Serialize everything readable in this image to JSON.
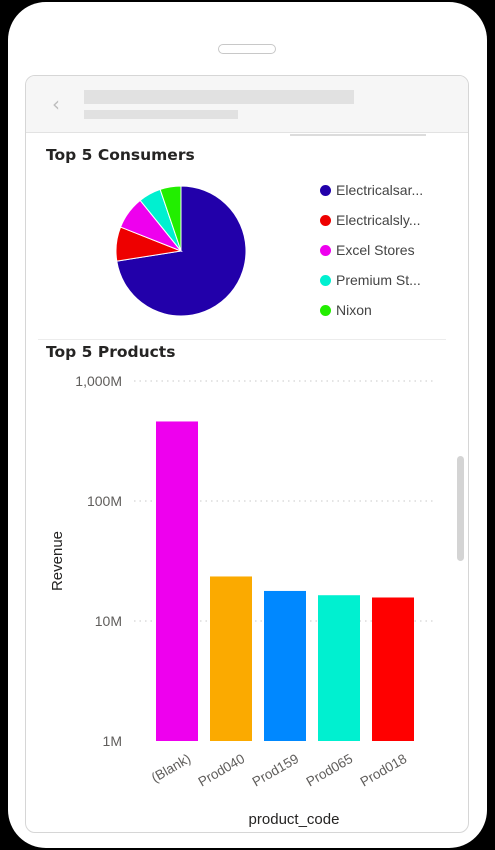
{
  "page": {
    "background": "#000000",
    "frame": "#ffffff"
  },
  "header": {
    "back_icon": "chevron-left-icon"
  },
  "pie_card": {
    "title": "Top 5 Consumers"
  },
  "bar_card": {
    "title": "Top 5 Products"
  },
  "chart_data": [
    {
      "type": "pie",
      "title": "Top 5 Consumers",
      "legend_position": "right",
      "slices": [
        {
          "label": "Electricalsar...",
          "value": 72.5,
          "color": "#2200AA"
        },
        {
          "label": "Electricalsly...",
          "value": 8.5,
          "color": "#EE0000"
        },
        {
          "label": "Excel Stores",
          "value": 8.2,
          "color": "#EE00EE"
        },
        {
          "label": "Premium St...",
          "value": 5.6,
          "color": "#00F0D0"
        },
        {
          "label": "Nixon",
          "value": 5.2,
          "color": "#22EE00"
        }
      ]
    },
    {
      "type": "bar",
      "title": "Top 5 Products",
      "xlabel": "product_code",
      "ylabel": "Revenue",
      "yscale": "log",
      "ylim": [
        1000000,
        1000000000
      ],
      "yticks": [
        {
          "value": 1000000,
          "label": "1M"
        },
        {
          "value": 10000000,
          "label": "10M"
        },
        {
          "value": 100000000,
          "label": "100M"
        },
        {
          "value": 1000000000,
          "label": "1,000M"
        }
      ],
      "grid": true,
      "categories": [
        "(Blank)",
        "Prod040",
        "Prod159",
        "Prod065",
        "Prod018"
      ],
      "values": [
        460000000,
        23500000,
        17800000,
        16400000,
        15700000
      ],
      "colors": [
        "#EE00EE",
        "#FBAA00",
        "#0088FF",
        "#00F0D0",
        "#FF0000"
      ]
    }
  ]
}
